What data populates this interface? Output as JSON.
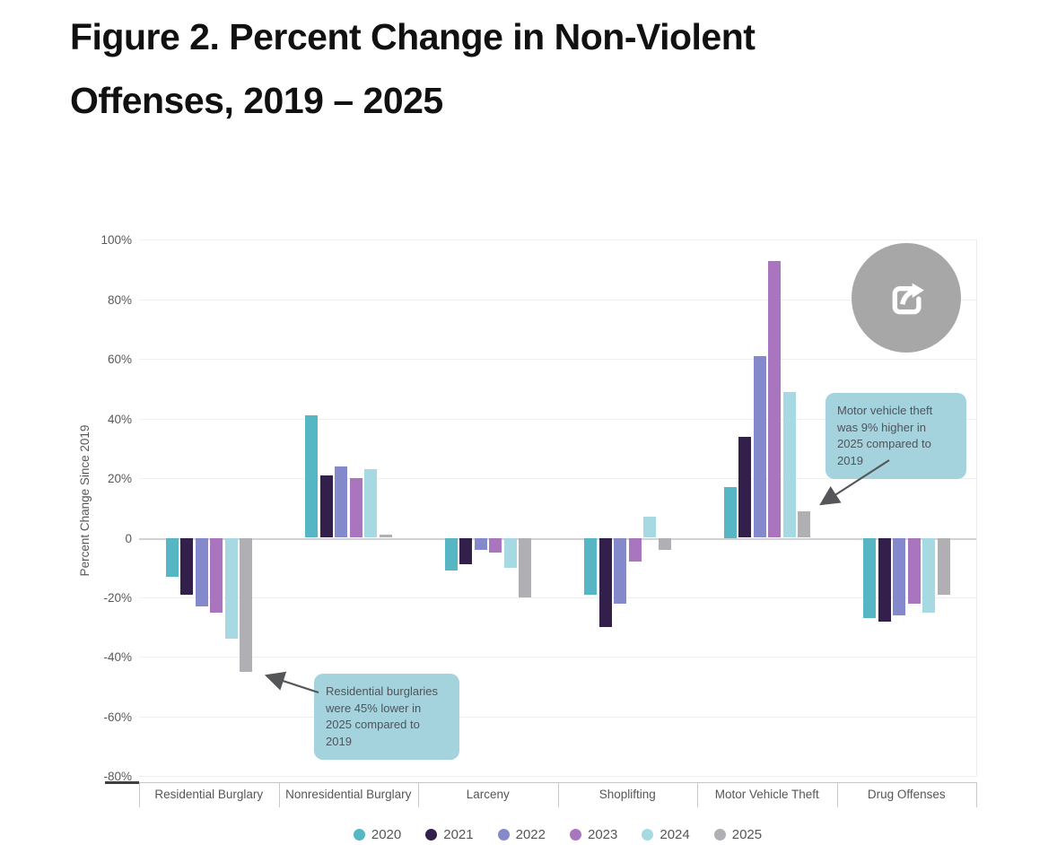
{
  "page": {
    "title_line1": "Figure 2. Percent Change in Non-Violent",
    "title_line2": "Offenses, 2019 – 2025"
  },
  "share_button": {
    "icon": "share-export-icon",
    "color": "#a7a7a7"
  },
  "chart_data": {
    "type": "bar",
    "title": "Figure 2. Percent Change in Non-Violent Offenses, 2019 – 2025",
    "xlabel": "",
    "ylabel": "Percent Change Since 2019",
    "ylim": [
      -80,
      100
    ],
    "ytick_step": 20,
    "ytick_labels": [
      "100%",
      "80%",
      "60%",
      "40%",
      "20%",
      "0",
      "-20%",
      "-40%",
      "-60%",
      "-80%"
    ],
    "grid": true,
    "legend_position": "bottom",
    "zero_baseline": true,
    "categories": [
      "Residential Burglary",
      "Nonresidential Burglary",
      "Larceny",
      "Shoplifting",
      "Motor Vehicle Theft",
      "Drug Offenses"
    ],
    "series": [
      {
        "name": "2020",
        "color": "#57b6c4",
        "values": [
          -13,
          41,
          -11,
          -19,
          17,
          -27
        ]
      },
      {
        "name": "2021",
        "color": "#32204a",
        "values": [
          -19,
          21,
          -9,
          -30,
          34,
          -28
        ]
      },
      {
        "name": "2022",
        "color": "#8489cb",
        "values": [
          -23,
          24,
          -4,
          -22,
          61,
          -26
        ]
      },
      {
        "name": "2023",
        "color": "#a975bf",
        "values": [
          -25,
          20,
          -5,
          -8,
          93,
          -22
        ]
      },
      {
        "name": "2024",
        "color": "#a7d9e2",
        "values": [
          -34,
          23,
          -10,
          7,
          49,
          -25
        ]
      },
      {
        "name": "2025",
        "color": "#b0b0b4",
        "values": [
          -45,
          1,
          -20,
          -4,
          9,
          -19
        ]
      }
    ],
    "annotations": [
      {
        "id": "residential-burglary",
        "text": "Residential burglaries were 45% lower in 2025 compared to 2019",
        "bg_color": "#a5d3dd",
        "text_color": "#4e545a"
      },
      {
        "id": "motor-vehicle-theft",
        "text": "Motor vehicle theft was 9% higher in 2025 compared to 2019",
        "bg_color": "#a5d3dd",
        "text_color": "#4e545a"
      }
    ],
    "arrow_color": "#55565a"
  }
}
